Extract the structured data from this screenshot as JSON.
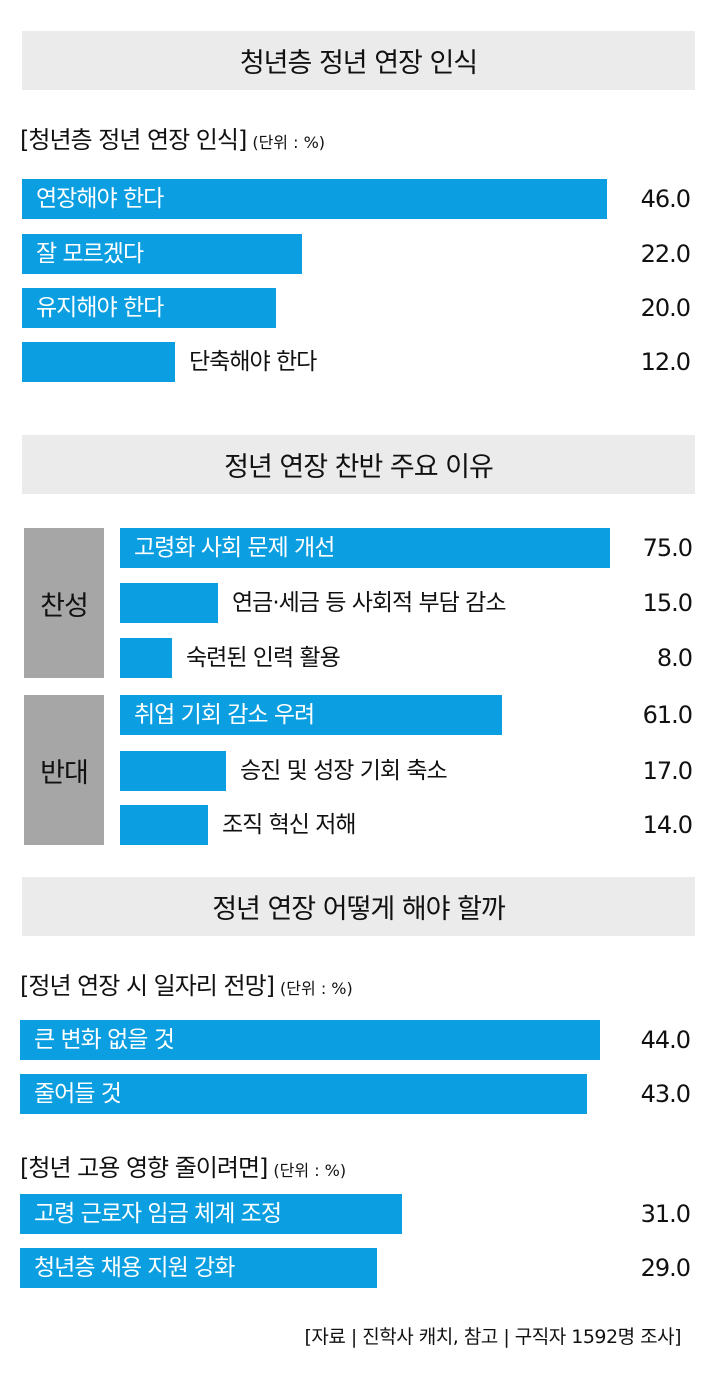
{
  "section1": {
    "header": "청년층 정년 연장 인식",
    "subtitle": "[청년층 정년 연장 인식]",
    "unit": "(단위 : %)"
  },
  "section2": {
    "header": "정년 연장 찬반 주요 이유",
    "group_agree": "찬성",
    "group_oppose": "반대"
  },
  "section3": {
    "header": "정년 연장 어떻게 해야 할까",
    "subtitle_jobs": "[정년 연장 시 일자리 전망]",
    "unit_jobs": "(단위 : %)",
    "subtitle_youth": "[청년 고용 영향 줄이려면]",
    "unit_youth": "(단위 : %)"
  },
  "source": "[자료 | 진학사 캐치, 참고 | 구직자 1592명 조사]",
  "colors": {
    "bar": "#0b9fe1",
    "header_bg": "#ebebeb",
    "group_bg": "#a6a6a6"
  },
  "chart_data": [
    {
      "type": "bar",
      "orientation": "horizontal",
      "title": "청년층 정년 연장 인식",
      "categories": [
        "연장해야 한다",
        "잘 모르겠다",
        "유지해야 한다",
        "단축해야 한다"
      ],
      "values": [
        46.0,
        22.0,
        20.0,
        12.0
      ],
      "value_labels": [
        "46.0",
        "22.0",
        "20.0",
        "12.0"
      ]
    },
    {
      "type": "bar",
      "orientation": "horizontal",
      "title": "찬성",
      "categories": [
        "고령화 사회 문제 개선",
        "연금·세금 등 사회적 부담 감소",
        "숙련된 인력 활용"
      ],
      "values": [
        75.0,
        15.0,
        8.0
      ],
      "value_labels": [
        "75.0",
        "15.0",
        "8.0"
      ]
    },
    {
      "type": "bar",
      "orientation": "horizontal",
      "title": "반대",
      "categories": [
        "취업 기회 감소 우려",
        "승진 및 성장 기회 축소",
        "조직 혁신 저해"
      ],
      "values": [
        61.0,
        17.0,
        14.0
      ],
      "value_labels": [
        "61.0",
        "17.0",
        "14.0"
      ]
    },
    {
      "type": "bar",
      "orientation": "horizontal",
      "title": "[정년 연장 시 일자리 전망]",
      "categories": [
        "큰 변화 없을 것",
        "줄어들 것"
      ],
      "values": [
        44.0,
        43.0
      ],
      "value_labels": [
        "44.0",
        "43.0"
      ]
    },
    {
      "type": "bar",
      "orientation": "horizontal",
      "title": "[청년 고용 영향 줄이려면]",
      "categories": [
        "고령 근로자 임금 체계 조정",
        "청년층 채용 지원 강화"
      ],
      "values": [
        31.0,
        29.0
      ],
      "value_labels": [
        "31.0",
        "29.0"
      ]
    }
  ]
}
